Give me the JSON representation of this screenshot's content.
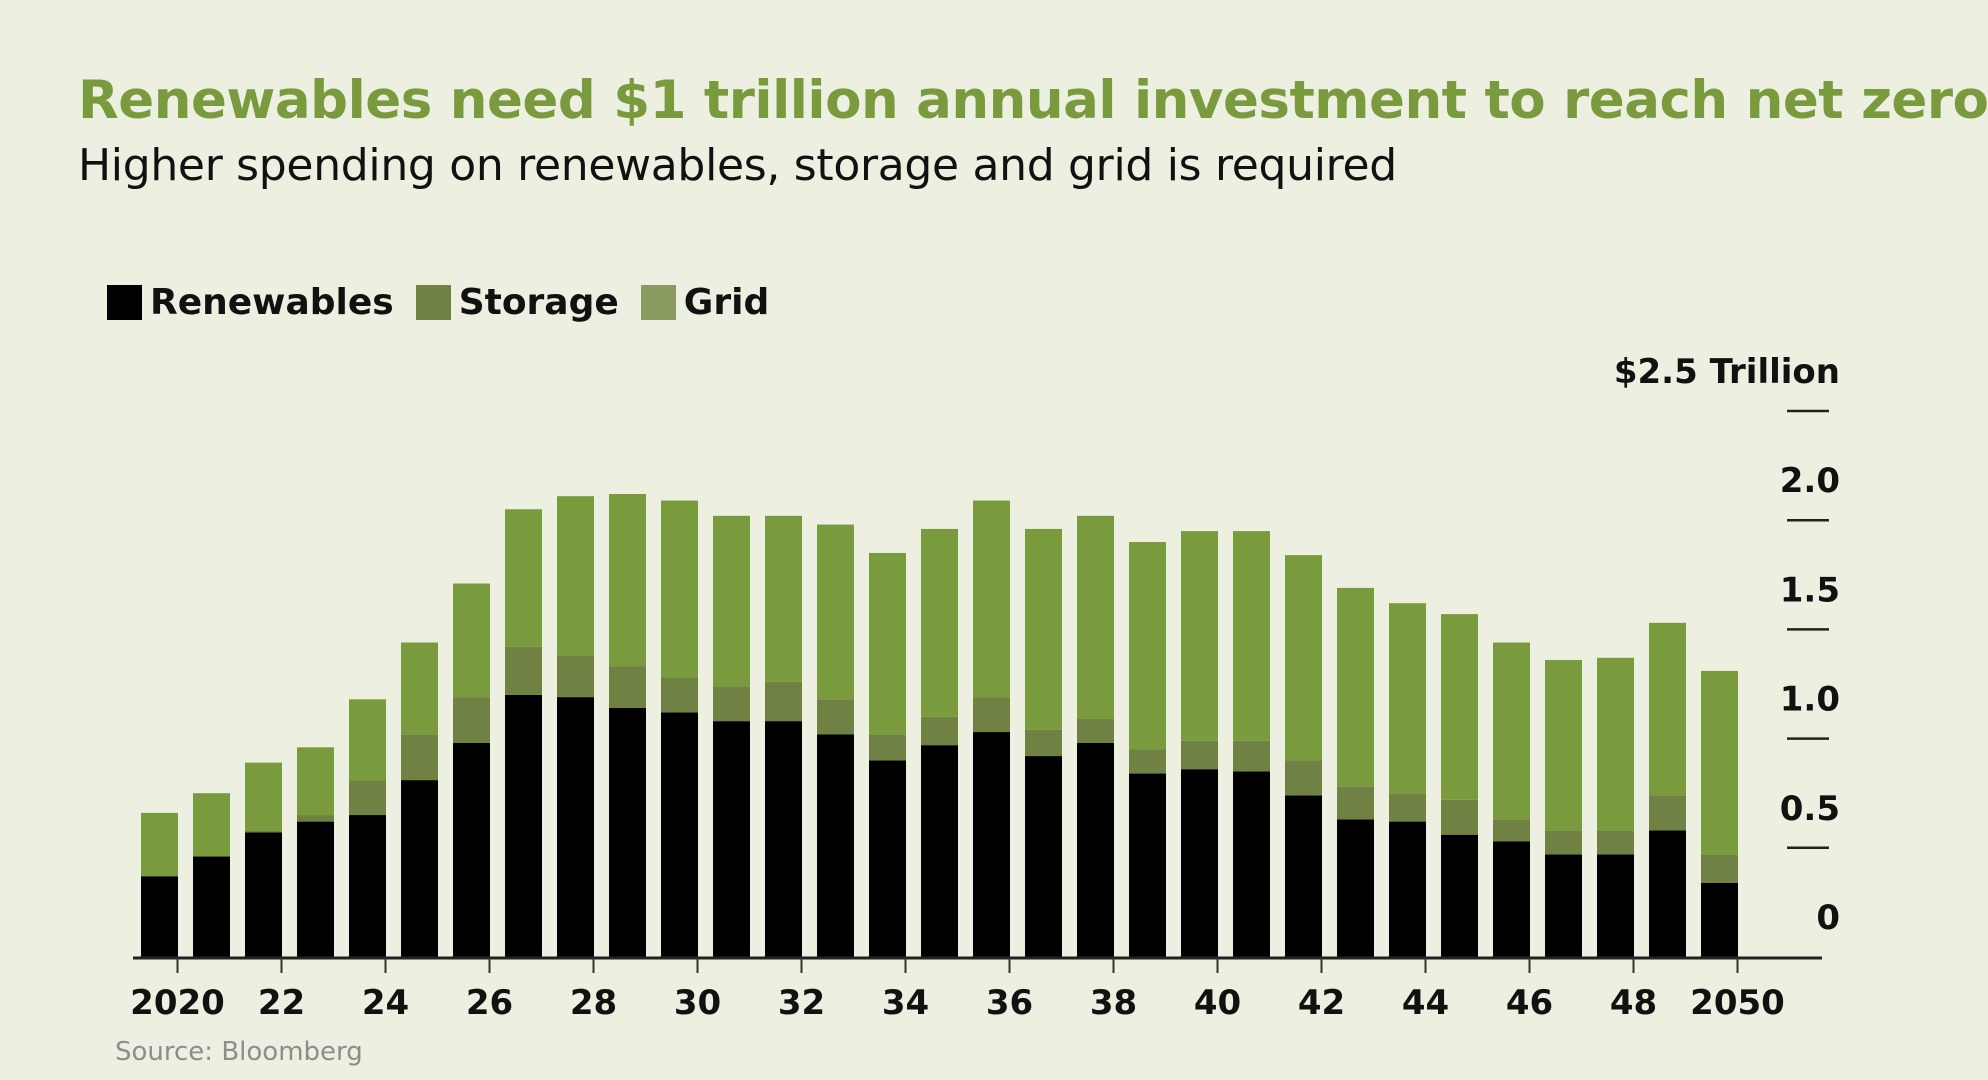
{
  "header": {
    "title": "Renewables need $1 trillion annual investment to reach net zero",
    "subtitle": "Higher spending on renewables, storage and grid is required"
  },
  "footer": {
    "source": "Source: Bloomberg"
  },
  "chart_data": {
    "type": "bar",
    "stacked": true,
    "categories": [
      "2020",
      "2021",
      "2022",
      "2023",
      "2024",
      "2025",
      "2026",
      "2027",
      "2028",
      "2029",
      "2030",
      "2031",
      "2032",
      "2033",
      "2034",
      "2035",
      "2036",
      "2037",
      "2038",
      "2039",
      "2040",
      "2041",
      "2042",
      "2043",
      "2044",
      "2045",
      "2046",
      "2047",
      "2048",
      "2049",
      "2050"
    ],
    "series": [
      {
        "name": "Renewables",
        "color": "#000000",
        "values": [
          0.37,
          0.46,
          0.57,
          0.62,
          0.65,
          0.81,
          0.98,
          1.2,
          1.19,
          1.14,
          1.12,
          1.08,
          1.08,
          1.02,
          0.9,
          0.97,
          1.03,
          0.92,
          0.98,
          0.84,
          0.86,
          0.85,
          0.74,
          0.63,
          0.62,
          0.56,
          0.53,
          0.47,
          0.47,
          0.58,
          0.34
        ]
      },
      {
        "name": "Storage",
        "color": "#6f8244",
        "values": [
          0.0,
          0.0,
          0.01,
          0.03,
          0.16,
          0.21,
          0.21,
          0.22,
          0.19,
          0.19,
          0.16,
          0.16,
          0.18,
          0.16,
          0.12,
          0.13,
          0.16,
          0.12,
          0.11,
          0.11,
          0.13,
          0.14,
          0.16,
          0.15,
          0.13,
          0.16,
          0.1,
          0.11,
          0.11,
          0.16,
          0.13
        ]
      },
      {
        "name": "Grid",
        "color": "#7a9a3e",
        "values": [
          0.29,
          0.29,
          0.31,
          0.31,
          0.37,
          0.42,
          0.52,
          0.63,
          0.73,
          0.79,
          0.81,
          0.78,
          0.76,
          0.8,
          0.83,
          0.86,
          0.9,
          0.92,
          0.93,
          0.95,
          0.96,
          0.96,
          0.94,
          0.91,
          0.87,
          0.85,
          0.81,
          0.78,
          0.79,
          0.79,
          0.84
        ]
      }
    ],
    "legend": [
      {
        "label": "Renewables",
        "color": "#000000"
      },
      {
        "label": "Storage",
        "color": "#6f8244"
      },
      {
        "label": "Grid",
        "color": "#8a9b62"
      }
    ],
    "xticks": [
      "2020",
      "22",
      "24",
      "26",
      "28",
      "30",
      "32",
      "34",
      "36",
      "38",
      "40",
      "42",
      "44",
      "46",
      "48",
      "2050"
    ],
    "yticks": [
      "0",
      "0.5",
      "1.0",
      "1.5",
      "2.0",
      "$2.5 Trillion"
    ],
    "ylim": [
      0,
      2.5
    ],
    "legend_position": "top-left",
    "y_axis_position": "right",
    "grid": false
  }
}
